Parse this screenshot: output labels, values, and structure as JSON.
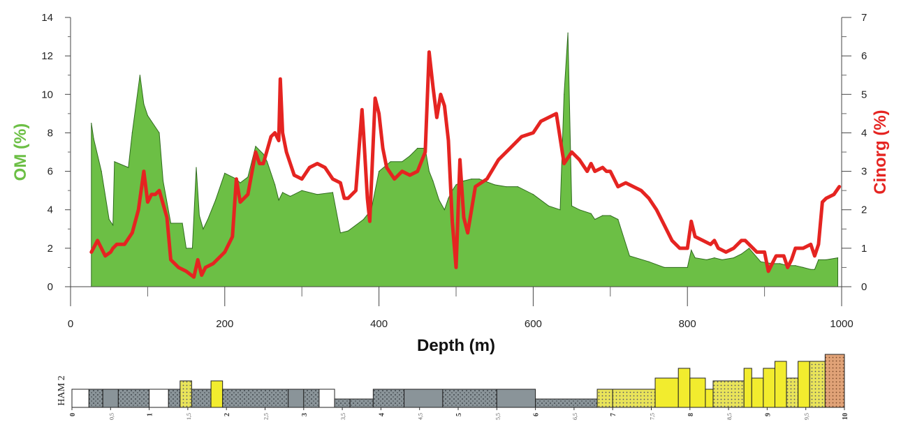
{
  "chart_data": {
    "type": "area",
    "xlabel": "Depth (m)",
    "xlim": [
      0,
      1000
    ],
    "xticks": [
      "0",
      "200",
      "400",
      "600",
      "800",
      "1000"
    ],
    "y_left": {
      "label": "OM (%)",
      "ylim": [
        0,
        14
      ],
      "ticks": [
        "0",
        "2",
        "4",
        "6",
        "8",
        "10",
        "12",
        "14"
      ],
      "color": "#6cbf45"
    },
    "y_right": {
      "label": "Cinorg (%)",
      "ylim": [
        0,
        7
      ],
      "ticks": [
        "0",
        "1",
        "2",
        "3",
        "4",
        "5",
        "6",
        "7"
      ],
      "color": "#e52421"
    },
    "series": [
      {
        "axis": "left",
        "style": "filled-area",
        "color": "#6cbf45",
        "x": [
          27,
          30,
          40,
          50,
          55,
          57,
          75,
          80,
          90,
          95,
          100,
          115,
          120,
          130,
          145,
          150,
          158,
          163,
          167,
          172,
          178,
          188,
          200,
          215,
          220,
          230,
          240,
          250,
          255,
          265,
          270,
          275,
          285,
          300,
          320,
          340,
          350,
          360,
          380,
          390,
          400,
          415,
          430,
          440,
          450,
          460,
          465,
          470,
          478,
          485,
          490,
          495,
          500,
          510,
          520,
          530,
          550,
          565,
          580,
          600,
          620,
          635,
          640,
          645,
          650,
          660,
          675,
          680,
          690,
          700,
          710,
          725,
          750,
          770,
          800,
          805,
          810,
          825,
          835,
          845,
          860,
          870,
          880,
          895,
          910,
          920,
          930,
          940,
          950,
          960,
          965,
          970,
          980,
          995
        ],
        "values": [
          8.5,
          7.7,
          6.0,
          3.5,
          3.2,
          6.5,
          6.2,
          8.0,
          11.0,
          9.5,
          8.9,
          8.0,
          5.5,
          3.3,
          3.3,
          2.0,
          2.0,
          6.2,
          3.7,
          3.0,
          3.5,
          4.5,
          5.9,
          5.6,
          5.4,
          5.7,
          7.3,
          6.9,
          6.5,
          5.3,
          4.5,
          4.9,
          4.7,
          5.0,
          4.8,
          4.9,
          2.8,
          2.9,
          3.5,
          4.0,
          6.0,
          6.5,
          6.5,
          6.8,
          7.2,
          7.2,
          6.0,
          5.5,
          4.5,
          4.0,
          4.6,
          5.0,
          5.3,
          5.5,
          5.6,
          5.6,
          5.3,
          5.2,
          5.2,
          4.8,
          4.2,
          4.0,
          10.0,
          13.2,
          4.2,
          4.0,
          3.8,
          3.5,
          3.7,
          3.7,
          3.5,
          1.6,
          1.3,
          1.0,
          1.0,
          1.9,
          1.5,
          1.4,
          1.5,
          1.4,
          1.5,
          1.7,
          2.0,
          1.3,
          1.2,
          1.2,
          1.1,
          1.1,
          1.0,
          0.9,
          0.9,
          1.4,
          1.4,
          1.5
        ]
      },
      {
        "axis": "right",
        "style": "line",
        "color": "#e52421",
        "x": [
          27,
          35,
          45,
          52,
          55,
          60,
          70,
          80,
          88,
          95,
          100,
          105,
          110,
          115,
          125,
          130,
          140,
          150,
          160,
          165,
          170,
          175,
          185,
          200,
          210,
          215,
          220,
          230,
          240,
          245,
          250,
          260,
          265,
          270,
          272,
          275,
          280,
          290,
          300,
          310,
          320,
          330,
          340,
          350,
          355,
          360,
          370,
          378,
          380,
          385,
          388,
          395,
          400,
          405,
          410,
          420,
          430,
          440,
          450,
          460,
          465,
          470,
          475,
          480,
          485,
          490,
          495,
          500,
          505,
          510,
          515,
          525,
          540,
          555,
          570,
          585,
          600,
          610,
          620,
          630,
          640,
          650,
          660,
          670,
          675,
          680,
          690,
          695,
          700,
          710,
          720,
          730,
          740,
          750,
          760,
          770,
          780,
          790,
          800,
          805,
          810,
          820,
          830,
          835,
          840,
          850,
          860,
          870,
          875,
          880,
          890,
          900,
          905,
          910,
          915,
          920,
          925,
          930,
          935,
          940,
          950,
          960,
          965,
          970,
          975,
          980,
          990,
          997
        ],
        "values": [
          0.9,
          1.2,
          0.8,
          0.9,
          1.0,
          1.1,
          1.1,
          1.4,
          2.0,
          3.0,
          2.2,
          2.4,
          2.4,
          2.5,
          1.8,
          0.7,
          0.5,
          0.4,
          0.25,
          0.7,
          0.3,
          0.5,
          0.6,
          0.9,
          1.3,
          2.8,
          2.2,
          2.4,
          3.5,
          3.2,
          3.2,
          3.9,
          4.0,
          3.8,
          5.4,
          4.0,
          3.5,
          2.9,
          2.8,
          3.1,
          3.2,
          3.1,
          2.8,
          2.7,
          2.3,
          2.3,
          2.5,
          4.6,
          4.0,
          2.3,
          1.7,
          4.9,
          4.5,
          3.6,
          3.1,
          2.8,
          3.0,
          2.9,
          3.0,
          3.5,
          6.1,
          5.2,
          4.4,
          5.0,
          4.7,
          3.8,
          1.7,
          0.5,
          3.3,
          1.8,
          1.4,
          2.6,
          2.8,
          3.3,
          3.6,
          3.9,
          4.0,
          4.3,
          4.4,
          4.5,
          3.2,
          3.5,
          3.3,
          3.0,
          3.2,
          3.0,
          3.1,
          3.0,
          3.0,
          2.6,
          2.7,
          2.6,
          2.5,
          2.3,
          2.0,
          1.6,
          1.2,
          1.0,
          1.0,
          1.7,
          1.3,
          1.2,
          1.1,
          1.2,
          1.0,
          0.9,
          1.0,
          1.2,
          1.2,
          1.1,
          0.9,
          0.9,
          0.4,
          0.6,
          0.8,
          0.8,
          0.8,
          0.5,
          0.7,
          1.0,
          1.0,
          1.1,
          0.8,
          1.1,
          2.2,
          2.3,
          2.4,
          2.6
        ]
      }
    ],
    "lithology_strip": {
      "label": "HAM 2",
      "scale_ticks": [
        "0",
        "0,5",
        "1",
        "1,5",
        "2",
        "2,5",
        "3",
        "3,5",
        "4",
        "4,5",
        "5",
        "5,5",
        "6",
        "6,5",
        "7",
        "7,5",
        "8",
        "8,5",
        "9",
        "9,5",
        "10"
      ],
      "scale_max": 10
    }
  }
}
